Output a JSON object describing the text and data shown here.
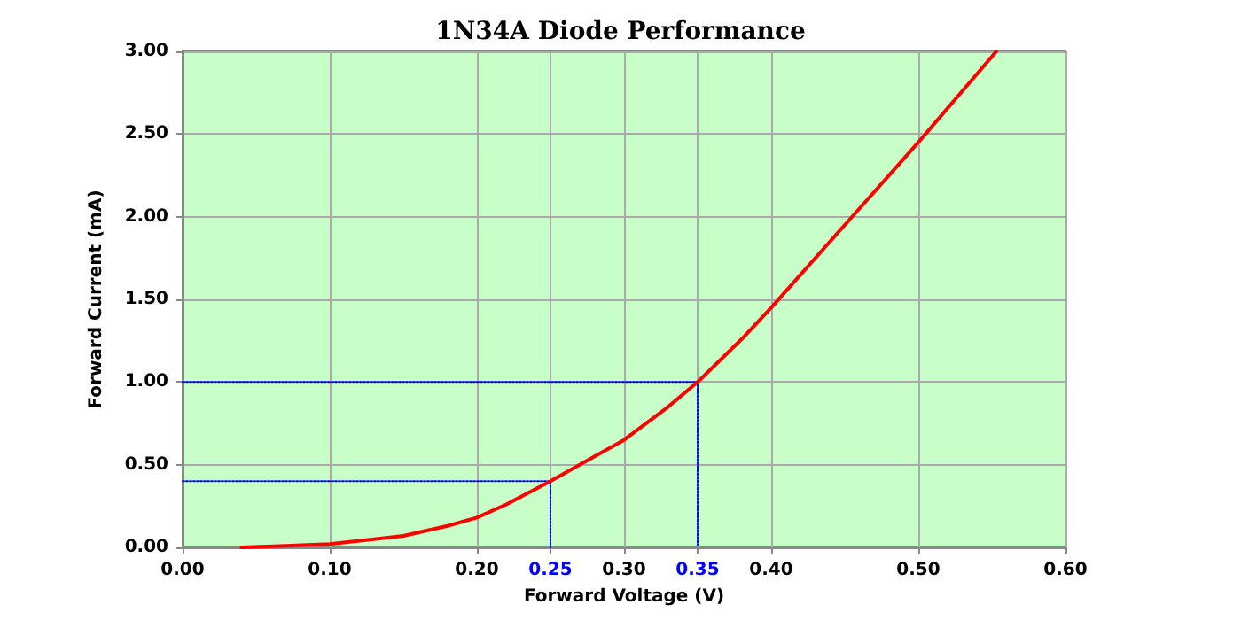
{
  "chart_data": {
    "type": "line",
    "title": "1N34A Diode Performance",
    "xlabel": "Forward Voltage (V)",
    "ylabel": "Forward Current (mA)",
    "series": [
      {
        "color": "#ff0000",
        "x": [
          0.04,
          0.07,
          0.1,
          0.13,
          0.15,
          0.18,
          0.2,
          0.22,
          0.25,
          0.28,
          0.3,
          0.33,
          0.35,
          0.38,
          0.4,
          0.45,
          0.5,
          0.553
        ],
        "values": [
          0,
          0.01,
          0.02,
          0.05,
          0.07,
          0.13,
          0.18,
          0.26,
          0.4,
          0.55,
          0.65,
          0.85,
          1.0,
          1.26,
          1.45,
          1.95,
          2.45,
          3.0
        ]
      },
      {
        "type": "line",
        "line_style": "dotted",
        "color": "#0000ff",
        "x": [
          0,
          0.35,
          0.35
        ],
        "values": [
          1.0,
          1.0,
          0
        ]
      },
      {
        "type": "line",
        "line_style": "dotted",
        "color": "#0000ff",
        "x": [
          0,
          0.25,
          0.25
        ],
        "values": [
          0.4,
          0.4,
          0
        ]
      }
    ],
    "xlim": [
      0,
      0.6
    ],
    "xticks": [
      {
        "value": 0,
        "label": "0.00"
      },
      {
        "value": 0.1,
        "label": "0.10"
      },
      {
        "value": 0.2,
        "label": "0.20"
      },
      {
        "value": 0.25,
        "label": "0.25"
      },
      {
        "value": 0.3,
        "label": "0.30"
      },
      {
        "value": 0.35,
        "label": "0.35"
      },
      {
        "value": 0.4,
        "label": "0.40"
      },
      {
        "value": 0.5,
        "label": "0.50"
      },
      {
        "value": 0.6,
        "label": "0.60"
      }
    ],
    "ylim": [
      0,
      3
    ],
    "yticks": [
      {
        "value": 0,
        "label": "0.00"
      },
      {
        "value": 0.5,
        "label": "0.50"
      },
      {
        "value": 1,
        "label": "1.00"
      },
      {
        "value": 1.5,
        "label": "1.50"
      },
      {
        "value": 2,
        "label": "2.00"
      },
      {
        "value": 2.5,
        "label": "2.50"
      },
      {
        "value": 3,
        "label": "3.00"
      }
    ],
    "grid": true,
    "marker": "none",
    "line_style": "solid"
  }
}
